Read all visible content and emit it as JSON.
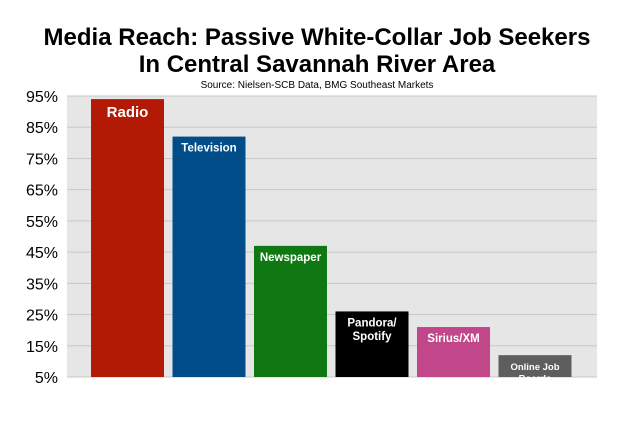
{
  "chart_data": {
    "type": "bar",
    "title_line1": "Media Reach: Passive White-Collar Job Seekers",
    "title_line2": "In Central Savannah River Area",
    "subtitle": "Source: Nielsen-SCB Data, BMG Southeast Markets",
    "categories": [
      "Radio",
      "Television",
      "Newspaper",
      "Pandora/ Spotify",
      "Sirius/XM",
      "Online Job Boards"
    ],
    "label_lines": [
      [
        "Radio"
      ],
      [
        "Television"
      ],
      [
        "Newspaper"
      ],
      [
        "Pandora/",
        "Spotify"
      ],
      [
        "Sirius/XM"
      ],
      [
        "Online Job",
        "Boards"
      ]
    ],
    "values": [
      94,
      82,
      47,
      26,
      21,
      12
    ],
    "colors": [
      "#b31a05",
      "#004d8a",
      "#0f7812",
      "#000000",
      "#c2468a",
      "#5e5e5e"
    ],
    "ylim": [
      5,
      95
    ],
    "yticks": [
      5,
      15,
      25,
      35,
      45,
      55,
      65,
      75,
      85,
      95
    ],
    "ytick_labels": [
      "5%",
      "15%",
      "25%",
      "35%",
      "45%",
      "55%",
      "65%",
      "75%",
      "85%",
      "95%"
    ],
    "grid": true,
    "plot_background": "#e6e6e6",
    "grid_color": "#c8c8c8"
  }
}
